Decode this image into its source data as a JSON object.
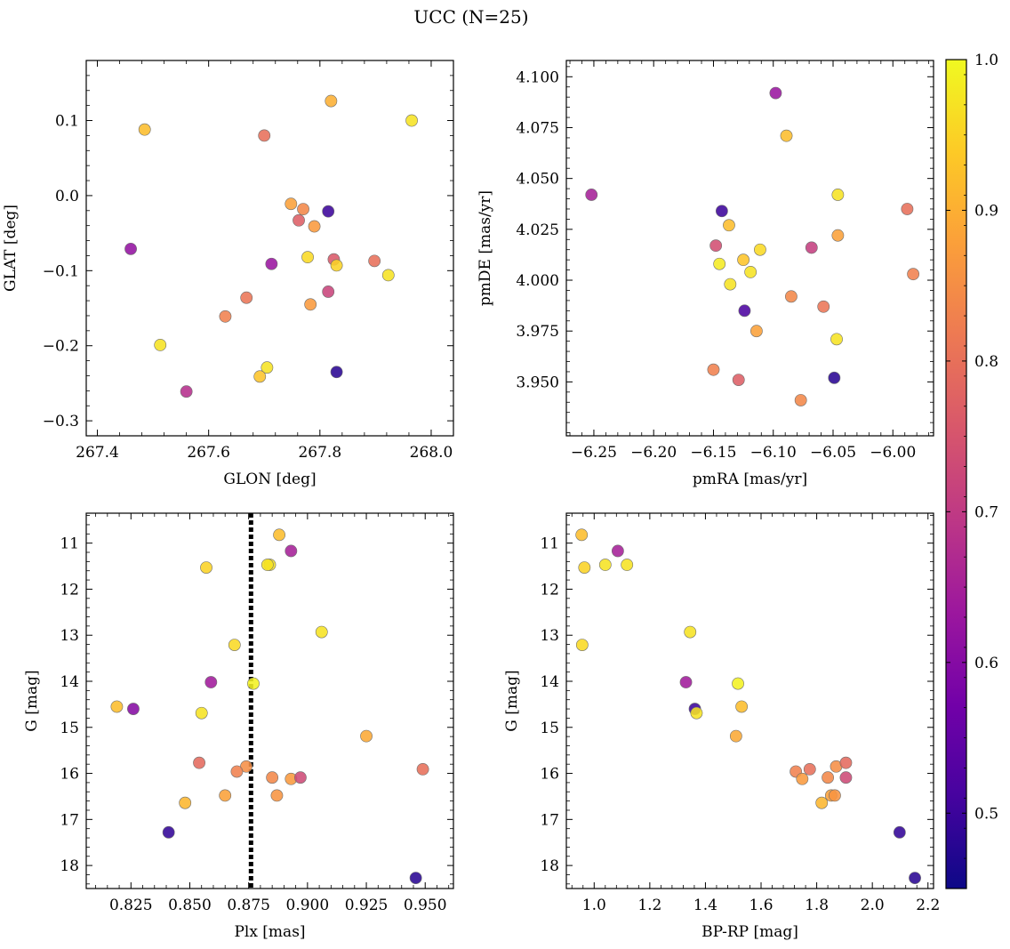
{
  "title": "UCC (N=25)",
  "colorbar": {
    "range": [
      0.45,
      1.0
    ],
    "ticks": [
      0.5,
      0.6,
      0.7,
      0.8,
      0.9,
      1.0
    ],
    "tick_labels": [
      "0.5",
      "0.6",
      "0.7",
      "0.8",
      "0.9",
      "1.0"
    ],
    "colormap": "plasma",
    "stops": [
      "#0d0887",
      "#46039f",
      "#7201a8",
      "#9c179e",
      "#bd3786",
      "#d8576b",
      "#ed7953",
      "#fb9f3a",
      "#fdca26",
      "#f0f921"
    ]
  },
  "chart_data": [
    {
      "type": "scatter",
      "id": "glon_glat",
      "xlabel": "GLON [deg]",
      "ylabel": "GLAT [deg]",
      "xlim": [
        267.38,
        268.04
      ],
      "ylim": [
        -0.32,
        0.18
      ],
      "xticks": [
        267.4,
        267.6,
        267.8,
        268.0
      ],
      "xtick_labels": [
        "267.4",
        "267.6",
        "267.8",
        "268.0"
      ],
      "yticks": [
        -0.3,
        -0.2,
        -0.1,
        0.0,
        0.1
      ],
      "ytick_labels": [
        "−0.3",
        "−0.2",
        "−0.1",
        "0.0",
        "0.1"
      ],
      "invert_y": false,
      "points": [
        {
          "x": 267.485,
          "y": 0.088,
          "c": 0.92
        },
        {
          "x": 267.7,
          "y": 0.08,
          "c": 0.8
        },
        {
          "x": 267.82,
          "y": 0.126,
          "c": 0.9
        },
        {
          "x": 267.965,
          "y": 0.1,
          "c": 0.97
        },
        {
          "x": 267.748,
          "y": -0.011,
          "c": 0.88
        },
        {
          "x": 267.77,
          "y": -0.018,
          "c": 0.84
        },
        {
          "x": 267.762,
          "y": -0.033,
          "c": 0.77
        },
        {
          "x": 267.79,
          "y": -0.041,
          "c": 0.87
        },
        {
          "x": 267.815,
          "y": -0.021,
          "c": 0.5
        },
        {
          "x": 267.46,
          "y": -0.071,
          "c": 0.62
        },
        {
          "x": 267.713,
          "y": -0.091,
          "c": 0.63
        },
        {
          "x": 267.778,
          "y": -0.082,
          "c": 0.96
        },
        {
          "x": 267.825,
          "y": -0.085,
          "c": 0.76
        },
        {
          "x": 267.83,
          "y": -0.093,
          "c": 0.95
        },
        {
          "x": 267.898,
          "y": -0.087,
          "c": 0.8
        },
        {
          "x": 267.923,
          "y": -0.106,
          "c": 0.97
        },
        {
          "x": 267.668,
          "y": -0.136,
          "c": 0.81
        },
        {
          "x": 267.815,
          "y": -0.128,
          "c": 0.72
        },
        {
          "x": 267.783,
          "y": -0.145,
          "c": 0.87
        },
        {
          "x": 267.63,
          "y": -0.161,
          "c": 0.83
        },
        {
          "x": 267.513,
          "y": -0.199,
          "c": 0.97
        },
        {
          "x": 267.705,
          "y": -0.229,
          "c": 0.97
        },
        {
          "x": 267.692,
          "y": -0.241,
          "c": 0.93
        },
        {
          "x": 267.83,
          "y": -0.235,
          "c": 0.48
        },
        {
          "x": 267.56,
          "y": -0.261,
          "c": 0.68
        }
      ]
    },
    {
      "type": "scatter",
      "id": "pmra_pmde",
      "xlabel": "pmRA [mas/yr]",
      "ylabel": "pmDE [mas/yr]",
      "xlim": [
        -6.273,
        -5.966
      ],
      "ylim": [
        3.9235,
        4.108
      ],
      "xticks": [
        -6.25,
        -6.2,
        -6.15,
        -6.1,
        -6.05,
        -6.0
      ],
      "xtick_labels": [
        "−6.25",
        "−6.20",
        "−6.15",
        "−6.10",
        "−6.05",
        "−6.00"
      ],
      "yticks": [
        3.95,
        3.975,
        4.0,
        4.025,
        4.05,
        4.075,
        4.1
      ],
      "ytick_labels": [
        "3.950",
        "3.975",
        "4.000",
        "4.025",
        "4.050",
        "4.075",
        "4.100"
      ],
      "invert_y": false,
      "points": [
        {
          "x": -6.252,
          "y": 4.042,
          "c": 0.65
        },
        {
          "x": -6.098,
          "y": 4.092,
          "c": 0.63
        },
        {
          "x": -6.089,
          "y": 4.071,
          "c": 0.92
        },
        {
          "x": -6.046,
          "y": 4.042,
          "c": 0.97
        },
        {
          "x": -6.143,
          "y": 4.034,
          "c": 0.5
        },
        {
          "x": -5.988,
          "y": 4.035,
          "c": 0.8
        },
        {
          "x": -6.137,
          "y": 4.027,
          "c": 0.92
        },
        {
          "x": -6.148,
          "y": 4.017,
          "c": 0.74
        },
        {
          "x": -6.046,
          "y": 4.022,
          "c": 0.88
        },
        {
          "x": -6.068,
          "y": 4.016,
          "c": 0.71
        },
        {
          "x": -6.111,
          "y": 4.015,
          "c": 0.96
        },
        {
          "x": -6.125,
          "y": 4.01,
          "c": 0.93
        },
        {
          "x": -6.145,
          "y": 4.008,
          "c": 0.98
        },
        {
          "x": -6.119,
          "y": 4.004,
          "c": 0.97
        },
        {
          "x": -6.136,
          "y": 3.998,
          "c": 0.97
        },
        {
          "x": -5.983,
          "y": 4.003,
          "c": 0.83
        },
        {
          "x": -6.085,
          "y": 3.992,
          "c": 0.84
        },
        {
          "x": -6.058,
          "y": 3.987,
          "c": 0.81
        },
        {
          "x": -6.124,
          "y": 3.985,
          "c": 0.52
        },
        {
          "x": -6.114,
          "y": 3.975,
          "c": 0.88
        },
        {
          "x": -6.047,
          "y": 3.971,
          "c": 0.97
        },
        {
          "x": -6.15,
          "y": 3.956,
          "c": 0.83
        },
        {
          "x": -6.129,
          "y": 3.951,
          "c": 0.77
        },
        {
          "x": -6.049,
          "y": 3.952,
          "c": 0.48
        },
        {
          "x": -6.077,
          "y": 3.941,
          "c": 0.84
        }
      ]
    },
    {
      "type": "scatter",
      "id": "plx_g",
      "xlabel": "Plx [mas]",
      "ylabel": "G [mag]",
      "xlim": [
        0.806,
        0.962
      ],
      "ylim": [
        18.5,
        10.35
      ],
      "xticks": [
        0.825,
        0.85,
        0.875,
        0.9,
        0.925,
        0.95
      ],
      "xtick_labels": [
        "0.825",
        "0.850",
        "0.875",
        "0.900",
        "0.925",
        "0.950"
      ],
      "yticks": [
        11,
        12,
        13,
        14,
        15,
        16,
        17,
        18
      ],
      "ytick_labels": [
        "11",
        "12",
        "13",
        "14",
        "15",
        "16",
        "17",
        "18"
      ],
      "invert_y": true,
      "vline": 0.876,
      "points": [
        {
          "x": 0.888,
          "y": 10.82,
          "c": 0.92
        },
        {
          "x": 0.893,
          "y": 11.17,
          "c": 0.65
        },
        {
          "x": 0.884,
          "y": 11.47,
          "c": 0.97
        },
        {
          "x": 0.883,
          "y": 11.47,
          "c": 0.97
        },
        {
          "x": 0.857,
          "y": 11.53,
          "c": 0.95
        },
        {
          "x": 0.906,
          "y": 12.93,
          "c": 0.97
        },
        {
          "x": 0.869,
          "y": 13.21,
          "c": 0.96
        },
        {
          "x": 0.859,
          "y": 14.02,
          "c": 0.64
        },
        {
          "x": 0.877,
          "y": 14.05,
          "c": 0.99
        },
        {
          "x": 0.819,
          "y": 14.55,
          "c": 0.92
        },
        {
          "x": 0.826,
          "y": 14.6,
          "c": 0.6
        },
        {
          "x": 0.855,
          "y": 14.69,
          "c": 0.97
        },
        {
          "x": 0.925,
          "y": 15.19,
          "c": 0.89
        },
        {
          "x": 0.854,
          "y": 15.77,
          "c": 0.79
        },
        {
          "x": 0.949,
          "y": 15.91,
          "c": 0.8
        },
        {
          "x": 0.874,
          "y": 15.85,
          "c": 0.85
        },
        {
          "x": 0.87,
          "y": 15.96,
          "c": 0.83
        },
        {
          "x": 0.885,
          "y": 16.09,
          "c": 0.84
        },
        {
          "x": 0.893,
          "y": 16.12,
          "c": 0.87
        },
        {
          "x": 0.897,
          "y": 16.09,
          "c": 0.73
        },
        {
          "x": 0.865,
          "y": 16.48,
          "c": 0.88
        },
        {
          "x": 0.887,
          "y": 16.48,
          "c": 0.86
        },
        {
          "x": 0.848,
          "y": 16.64,
          "c": 0.91
        },
        {
          "x": 0.841,
          "y": 17.28,
          "c": 0.49
        },
        {
          "x": 0.946,
          "y": 18.27,
          "c": 0.48
        }
      ]
    },
    {
      "type": "scatter",
      "id": "bprp_g",
      "xlabel": "BP-RP [mag]",
      "ylabel": "G [mag]",
      "xlim": [
        0.9,
        2.22
      ],
      "ylim": [
        18.5,
        10.35
      ],
      "xticks": [
        1.0,
        1.2,
        1.4,
        1.6,
        1.8,
        2.0,
        2.2
      ],
      "xtick_labels": [
        "1.0",
        "1.2",
        "1.4",
        "1.6",
        "1.8",
        "2.0",
        "2.2"
      ],
      "yticks": [
        11,
        12,
        13,
        14,
        15,
        16,
        17,
        18
      ],
      "ytick_labels": [
        "11",
        "12",
        "13",
        "14",
        "15",
        "16",
        "17",
        "18"
      ],
      "invert_y": true,
      "points": [
        {
          "x": 0.955,
          "y": 10.82,
          "c": 0.92
        },
        {
          "x": 1.085,
          "y": 11.17,
          "c": 0.65
        },
        {
          "x": 1.04,
          "y": 11.47,
          "c": 0.97
        },
        {
          "x": 1.118,
          "y": 11.47,
          "c": 0.97
        },
        {
          "x": 0.965,
          "y": 11.53,
          "c": 0.95
        },
        {
          "x": 0.957,
          "y": 13.21,
          "c": 0.96
        },
        {
          "x": 1.345,
          "y": 12.93,
          "c": 0.97
        },
        {
          "x": 1.33,
          "y": 14.02,
          "c": 0.64
        },
        {
          "x": 1.517,
          "y": 14.05,
          "c": 0.99
        },
        {
          "x": 1.362,
          "y": 14.6,
          "c": 0.5
        },
        {
          "x": 1.368,
          "y": 14.69,
          "c": 0.97
        },
        {
          "x": 1.53,
          "y": 14.55,
          "c": 0.92
        },
        {
          "x": 1.51,
          "y": 15.19,
          "c": 0.89
        },
        {
          "x": 1.725,
          "y": 15.96,
          "c": 0.83
        },
        {
          "x": 1.775,
          "y": 15.91,
          "c": 0.8
        },
        {
          "x": 1.87,
          "y": 15.85,
          "c": 0.85
        },
        {
          "x": 1.905,
          "y": 15.77,
          "c": 0.79
        },
        {
          "x": 1.748,
          "y": 16.12,
          "c": 0.87
        },
        {
          "x": 1.84,
          "y": 16.09,
          "c": 0.84
        },
        {
          "x": 1.905,
          "y": 16.09,
          "c": 0.73
        },
        {
          "x": 1.852,
          "y": 16.48,
          "c": 0.88
        },
        {
          "x": 1.865,
          "y": 16.48,
          "c": 0.86
        },
        {
          "x": 1.818,
          "y": 16.64,
          "c": 0.91
        },
        {
          "x": 2.098,
          "y": 17.28,
          "c": 0.49
        },
        {
          "x": 2.153,
          "y": 18.27,
          "c": 0.48
        }
      ]
    }
  ]
}
